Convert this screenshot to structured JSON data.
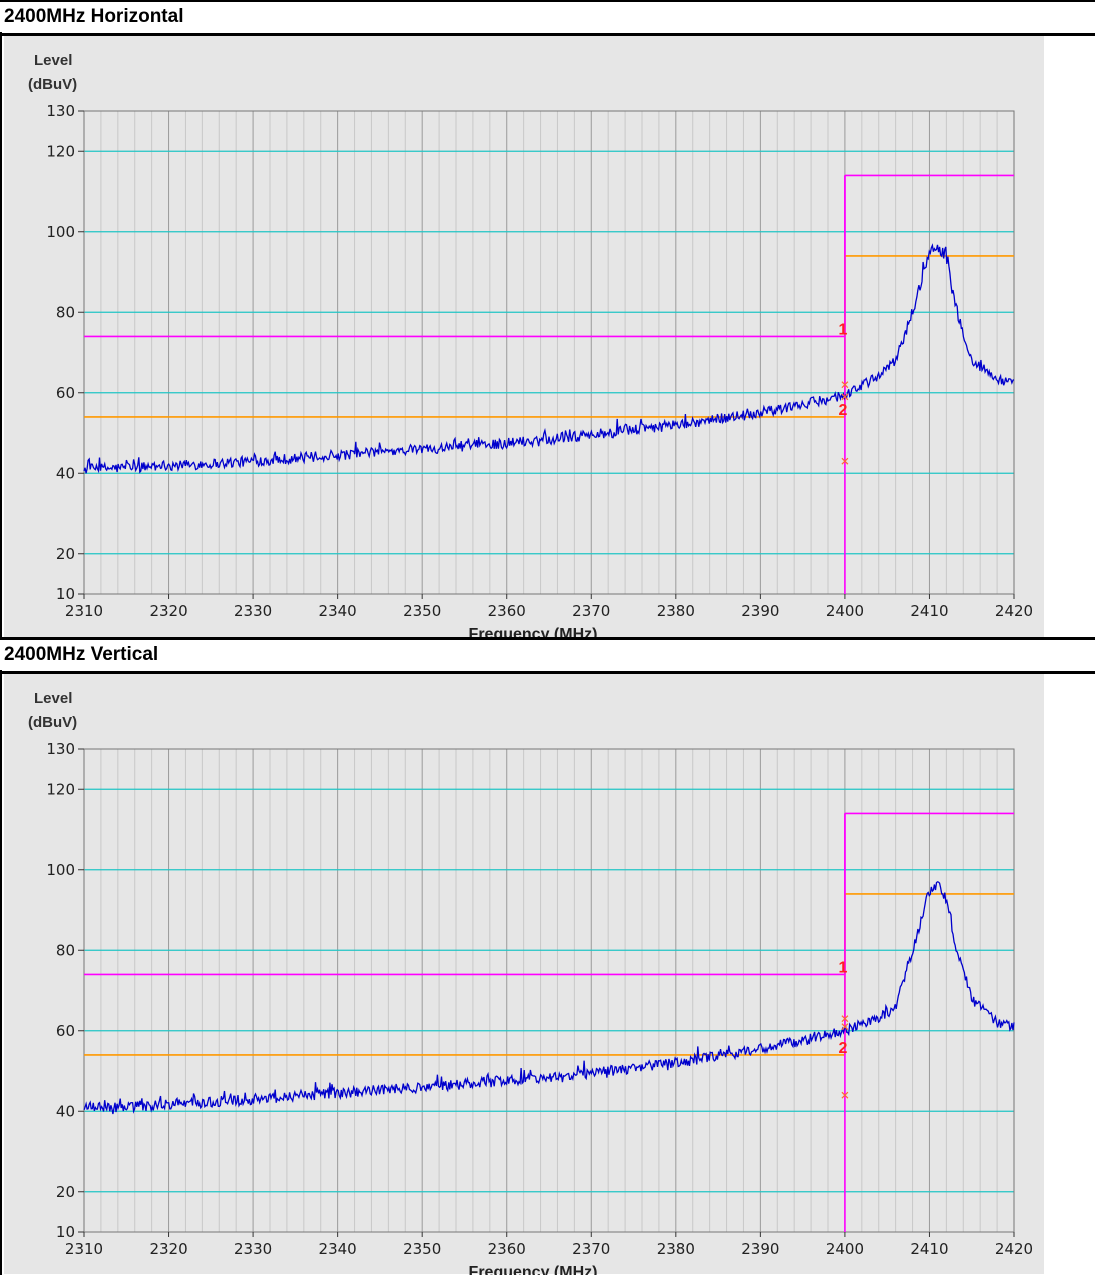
{
  "panels": [
    {
      "title": "2400MHz Horizontal"
    },
    {
      "title": "2400MHz Vertical"
    }
  ],
  "chart_data": [
    {
      "type": "line",
      "title": "2400MHz Horizontal",
      "ylabel_line1": "Level",
      "ylabel_line2": "(dBuV)",
      "xlabel": "Frequency (MHz)",
      "xlim": [
        2310,
        2420
      ],
      "ylim": [
        10,
        130
      ],
      "xticks": [
        2310,
        2320,
        2330,
        2340,
        2350,
        2360,
        2370,
        2380,
        2390,
        2400,
        2410,
        2420
      ],
      "yticks": [
        10,
        20,
        40,
        60,
        80,
        100,
        120,
        130
      ],
      "grid": true,
      "limits": [
        {
          "color": "#ff00ff",
          "segments": [
            [
              2310,
              2400,
              74
            ],
            [
              2400,
              2420,
              114
            ]
          ]
        },
        {
          "color": "#ff9900",
          "segments": [
            [
              2310,
              2400,
              54
            ],
            [
              2400,
              2420,
              94
            ]
          ]
        }
      ],
      "marker_line_x": 2400,
      "markers": [
        {
          "label": "1",
          "x": 2400,
          "y": 74
        },
        {
          "label": "2",
          "x": 2400,
          "y": 54
        }
      ],
      "cross_markers": [
        {
          "x": 2400,
          "y": 62
        },
        {
          "x": 2400,
          "y": 59
        },
        {
          "x": 2400,
          "y": 43
        }
      ],
      "trace": {
        "color": "#0000cc",
        "points": [
          [
            2310,
            41
          ],
          [
            2320,
            41.8
          ],
          [
            2330,
            43
          ],
          [
            2340,
            44.5
          ],
          [
            2350,
            46
          ],
          [
            2360,
            47.5
          ],
          [
            2370,
            49.5
          ],
          [
            2380,
            52
          ],
          [
            2390,
            55
          ],
          [
            2395,
            57
          ],
          [
            2400,
            59.5
          ],
          [
            2404,
            64
          ],
          [
            2406,
            68
          ],
          [
            2408,
            80
          ],
          [
            2410,
            95
          ],
          [
            2411,
            96
          ],
          [
            2412,
            94
          ],
          [
            2413,
            82
          ],
          [
            2415,
            68
          ],
          [
            2418,
            63.5
          ],
          [
            2420,
            62
          ]
        ],
        "noise": 1.3
      }
    },
    {
      "type": "line",
      "title": "2400MHz Vertical",
      "ylabel_line1": "Level",
      "ylabel_line2": "(dBuV)",
      "xlabel": "Frequency (MHz)",
      "xlim": [
        2310,
        2420
      ],
      "ylim": [
        10,
        130
      ],
      "xticks": [
        2310,
        2320,
        2330,
        2340,
        2350,
        2360,
        2370,
        2380,
        2390,
        2400,
        2410,
        2420
      ],
      "yticks": [
        10,
        20,
        40,
        60,
        80,
        100,
        120,
        130
      ],
      "grid": true,
      "limits": [
        {
          "color": "#ff00ff",
          "segments": [
            [
              2310,
              2400,
              74
            ],
            [
              2400,
              2420,
              114
            ]
          ]
        },
        {
          "color": "#ff9900",
          "segments": [
            [
              2310,
              2400,
              54
            ],
            [
              2400,
              2420,
              94
            ]
          ]
        }
      ],
      "marker_line_x": 2400,
      "markers": [
        {
          "label": "1",
          "x": 2400,
          "y": 74
        },
        {
          "label": "2",
          "x": 2400,
          "y": 54
        }
      ],
      "cross_markers": [
        {
          "x": 2400,
          "y": 63
        },
        {
          "x": 2400,
          "y": 61
        },
        {
          "x": 2400,
          "y": 44
        }
      ],
      "trace": {
        "color": "#0000cc",
        "points": [
          [
            2310,
            40.8
          ],
          [
            2320,
            41.6
          ],
          [
            2330,
            43
          ],
          [
            2340,
            44.5
          ],
          [
            2350,
            46
          ],
          [
            2360,
            47.5
          ],
          [
            2370,
            49.5
          ],
          [
            2380,
            52
          ],
          [
            2390,
            55.5
          ],
          [
            2395,
            57.5
          ],
          [
            2400,
            60
          ],
          [
            2404,
            63
          ],
          [
            2406,
            66
          ],
          [
            2408,
            80
          ],
          [
            2410,
            95
          ],
          [
            2411,
            96
          ],
          [
            2412,
            93
          ],
          [
            2413,
            82
          ],
          [
            2415,
            68
          ],
          [
            2418,
            62
          ],
          [
            2420,
            61
          ]
        ],
        "noise": 1.3
      }
    }
  ]
}
